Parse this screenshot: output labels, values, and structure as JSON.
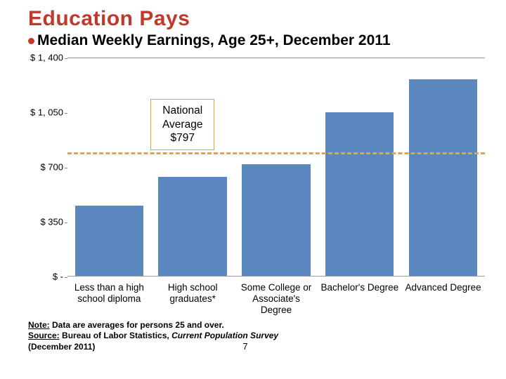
{
  "title": "Education Pays",
  "title_color": "#c0392b",
  "subtitle": "Median Weekly Earnings, Age 25+, December 2011",
  "bullet_color": "#c0392b",
  "chart": {
    "type": "bar",
    "categories": [
      "Less than a high school diploma",
      "High school graduates*",
      "Some College or Associate's Degree",
      "Bachelor's Degree",
      "Advanced Degree"
    ],
    "values": [
      451,
      638,
      719,
      1053,
      1263
    ],
    "bar_color": "#5b87bf",
    "yticks": [
      0,
      350,
      700,
      1050,
      1400
    ],
    "ytick_labels": [
      "$ -",
      "$ 350",
      "$ 700",
      "$ 1, 050",
      "$ 1, 400"
    ],
    "ymin": 0,
    "ymax": 1400,
    "background_color": "#ffffff",
    "axis_color": "#888888",
    "label_fontsize": 13
  },
  "national_average": {
    "label_line1": "National",
    "label_line2": "Average",
    "label_line3": "$797",
    "value": 797,
    "box_border_color": "#e8a43a",
    "line_color": "#e8a43a"
  },
  "notes": {
    "line1_prefix": "Note:",
    "line1_text": "Data are averages for persons 25 and over.",
    "line2_prefix": "Source:",
    "line2_text_a": "Bureau of Labor Statistics, ",
    "line2_italic": "Current Population Survey",
    "line2_text_b": "",
    "line3": "(December 2011)"
  },
  "page_number": "7"
}
